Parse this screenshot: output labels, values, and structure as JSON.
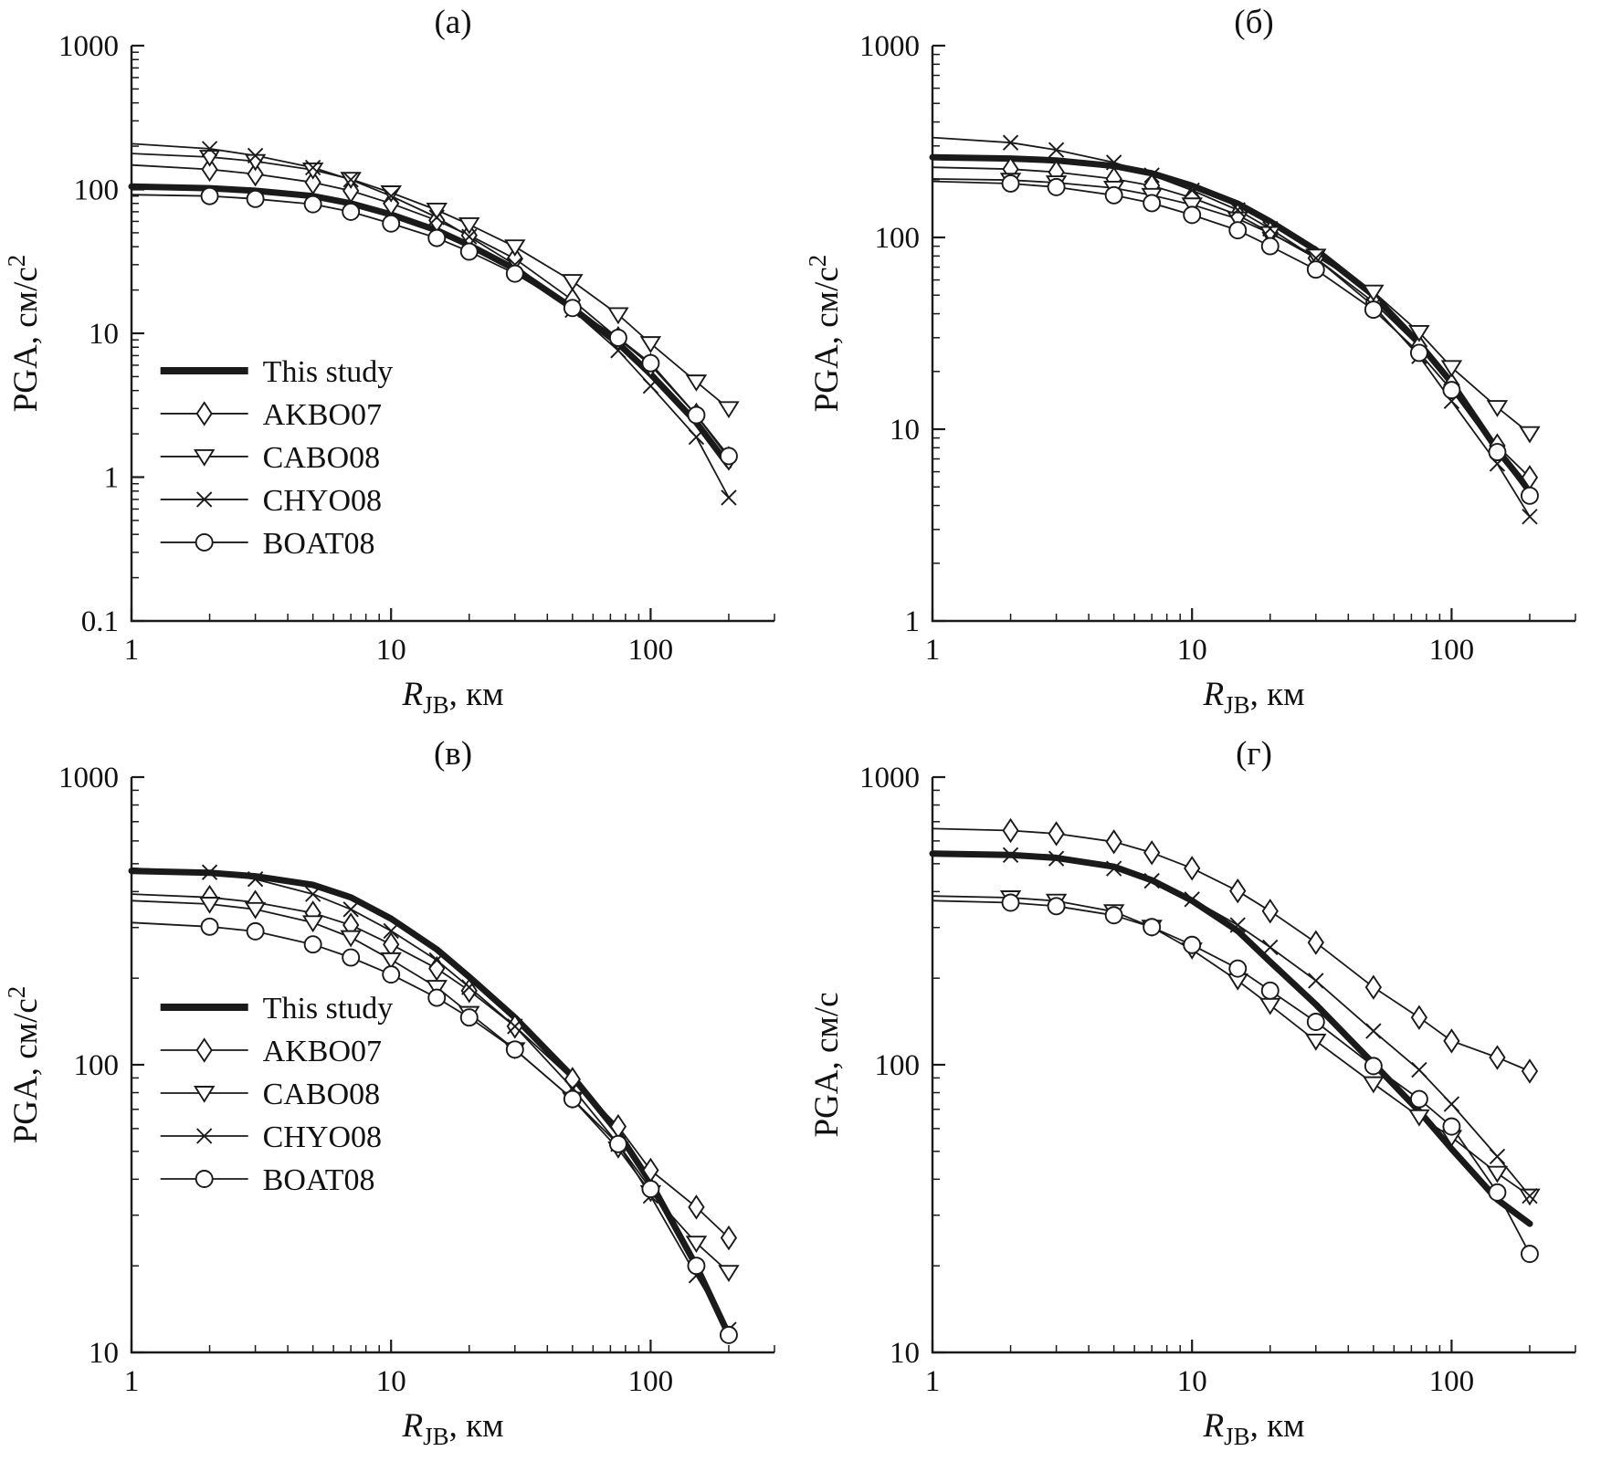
{
  "figure": {
    "legend_labels": [
      "This study",
      "AKBO07",
      "CABO08",
      "CHYO08",
      "BOAT08"
    ],
    "ink_color": "#1a1a1a"
  },
  "chart_data": [
    {
      "id": "a",
      "type": "line",
      "title": "(а)",
      "xscale": "log",
      "yscale": "log",
      "grid": false,
      "xlabel": {
        "italic": "R",
        "sub": "JB",
        "rest": ", км"
      },
      "ylabel": {
        "text": "PGA, см/с",
        "sup": "2"
      },
      "xlim": [
        1,
        300
      ],
      "ylim": [
        0.1,
        1000
      ],
      "x": [
        1,
        2,
        3,
        5,
        7,
        10,
        15,
        20,
        30,
        50,
        75,
        100,
        150,
        200
      ],
      "legend": true,
      "legend_pos": {
        "x": 0.045,
        "y": 0.565
      },
      "series": [
        {
          "name": "This study",
          "marker": "none",
          "thick": true,
          "values": [
            105,
            102,
            98,
            90,
            80,
            67,
            52,
            41,
            28,
            15,
            8.5,
            5.2,
            2.4,
            1.2
          ]
        },
        {
          "name": "AKBO07",
          "marker": "diamond",
          "thick": false,
          "values": [
            148,
            138,
            128,
            112,
            98,
            80,
            61,
            48,
            33,
            17,
            9.2,
            6.0,
            2.7,
            1.35
          ]
        },
        {
          "name": "CABO08",
          "marker": "triangle",
          "thick": false,
          "values": [
            178,
            168,
            157,
            137,
            118,
            95,
            72,
            57,
            40,
            23,
            13.5,
            8.5,
            4.6,
            3.0
          ]
        },
        {
          "name": "CHYO08",
          "marker": "x",
          "thick": false,
          "values": [
            208,
            192,
            172,
            142,
            117,
            90,
            64,
            47,
            30,
            14.5,
            7.6,
            4.3,
            1.9,
            0.72
          ]
        },
        {
          "name": "BOAT08",
          "marker": "circle",
          "thick": false,
          "values": [
            92,
            90,
            86,
            79,
            70,
            58,
            46,
            37,
            26,
            15,
            9.3,
            6.2,
            2.7,
            1.4
          ]
        }
      ]
    },
    {
      "id": "b",
      "type": "line",
      "title": "(б)",
      "xscale": "log",
      "yscale": "log",
      "grid": false,
      "xlabel": {
        "italic": "R",
        "sub": "JB",
        "rest": ", км"
      },
      "ylabel": {
        "text": "PGA, см/с",
        "sup": "2"
      },
      "xlim": [
        1,
        300
      ],
      "ylim": [
        1,
        1000
      ],
      "x": [
        1,
        2,
        3,
        5,
        7,
        10,
        15,
        20,
        30,
        50,
        75,
        100,
        150,
        200
      ],
      "legend": false,
      "legend_pos": {
        "x": 0,
        "y": 0
      },
      "series": [
        {
          "name": "This study",
          "marker": "none",
          "thick": true,
          "values": [
            262,
            258,
            252,
            236,
            216,
            186,
            150,
            121,
            86,
            50,
            28,
            17.5,
            7.8,
            4.8
          ]
        },
        {
          "name": "AKBO07",
          "marker": "diamond",
          "thick": false,
          "values": [
            232,
            227,
            219,
            202,
            186,
            161,
            131,
            106,
            78,
            46,
            27,
            17,
            8.2,
            5.6
          ]
        },
        {
          "name": "CABO08",
          "marker": "triangle",
          "thick": false,
          "values": [
            202,
            199,
            193,
            181,
            166,
            148,
            125,
            105,
            80,
            52,
            32,
            21,
            13,
            9.5
          ]
        },
        {
          "name": "CHYO08",
          "marker": "x",
          "thick": false,
          "values": [
            332,
            312,
            286,
            246,
            211,
            176,
            139,
            111,
            78,
            44,
            24,
            14,
            6.6,
            3.5
          ]
        },
        {
          "name": "BOAT08",
          "marker": "circle",
          "thick": false,
          "values": [
            196,
            191,
            183,
            166,
            151,
            131,
            109,
            90,
            68,
            42,
            25,
            16,
            7.6,
            4.5
          ]
        }
      ]
    },
    {
      "id": "v",
      "type": "line",
      "title": "(в)",
      "xscale": "log",
      "yscale": "log",
      "grid": false,
      "xlabel": {
        "italic": "R",
        "sub": "JB",
        "rest": ", км"
      },
      "ylabel": {
        "text": "PGA, см/с",
        "sup": "2"
      },
      "xlim": [
        1,
        300
      ],
      "ylim": [
        10,
        1000
      ],
      "x": [
        1,
        2,
        3,
        5,
        7,
        10,
        15,
        20,
        30,
        50,
        75,
        100,
        150,
        200
      ],
      "legend": true,
      "legend_pos": {
        "x": 0.045,
        "y": 0.4
      },
      "series": [
        {
          "name": "This study",
          "marker": "none",
          "thick": true,
          "values": [
            472,
            465,
            452,
            422,
            382,
            322,
            252,
            202,
            146,
            91,
            58,
            39,
            20,
            11.5
          ]
        },
        {
          "name": "AKBO07",
          "marker": "diamond",
          "thick": false,
          "values": [
            392,
            382,
            367,
            337,
            306,
            262,
            216,
            181,
            136,
            89,
            61,
            43,
            32,
            25
          ]
        },
        {
          "name": "CABO08",
          "marker": "triangle",
          "thick": false,
          "values": [
            372,
            362,
            347,
            312,
            277,
            232,
            186,
            151,
            113,
            76,
            51,
            36,
            24,
            19
          ]
        },
        {
          "name": "CHYO08",
          "marker": "x",
          "thick": false,
          "values": [
            482,
            467,
            442,
            392,
            347,
            292,
            231,
            186,
            136,
            83,
            53,
            35,
            18.5,
            12
          ]
        },
        {
          "name": "BOAT08",
          "marker": "circle",
          "thick": false,
          "values": [
            312,
            302,
            291,
            262,
            236,
            206,
            171,
            146,
            113,
            76,
            53,
            37,
            20,
            11.5
          ]
        }
      ]
    },
    {
      "id": "g",
      "type": "line",
      "title": "(г)",
      "xscale": "log",
      "yscale": "log",
      "grid": false,
      "xlabel": {
        "italic": "R",
        "sub": "JB",
        "rest": ", км"
      },
      "ylabel": {
        "text": "PGA, см/с",
        "sup": ""
      },
      "xlim": [
        1,
        300
      ],
      "ylim": [
        10,
        1000
      ],
      "x": [
        1,
        2,
        3,
        5,
        7,
        10,
        15,
        20,
        30,
        50,
        75,
        100,
        150,
        200
      ],
      "legend": false,
      "legend_pos": {
        "x": 0,
        "y": 0
      },
      "series": [
        {
          "name": "This study",
          "marker": "none",
          "thick": true,
          "values": [
            542,
            536,
            524,
            488,
            438,
            372,
            292,
            228,
            162,
            101,
            69,
            51,
            34,
            28
          ]
        },
        {
          "name": "AKBO07",
          "marker": "diamond",
          "thick": false,
          "values": [
            662,
            652,
            636,
            596,
            546,
            482,
            402,
            342,
            266,
            186,
            146,
            121,
            106,
            95
          ]
        },
        {
          "name": "CABO08",
          "marker": "triangle",
          "thick": false,
          "values": [
            386,
            381,
            371,
            341,
            301,
            251,
            196,
            161,
            121,
            86,
            66,
            56,
            42,
            35
          ]
        },
        {
          "name": "CHYO08",
          "marker": "x",
          "thick": false,
          "values": [
            546,
            536,
            521,
            481,
            436,
            376,
            306,
            256,
            196,
            131,
            96,
            73,
            48,
            35
          ]
        },
        {
          "name": "BOAT08",
          "marker": "circle",
          "thick": false,
          "values": [
            372,
            366,
            356,
            331,
            301,
            261,
            216,
            181,
            141,
            99,
            76,
            61,
            36,
            22
          ]
        }
      ]
    }
  ]
}
